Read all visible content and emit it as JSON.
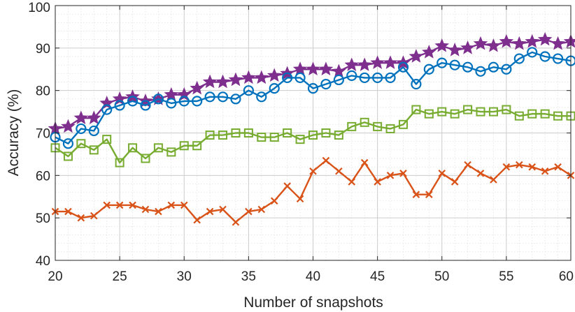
{
  "chart_data": {
    "type": "line",
    "title": "",
    "xlabel": "Number of snapshots",
    "ylabel": "Accuracy (%)",
    "xlim": [
      20,
      60
    ],
    "ylim": [
      40,
      100
    ],
    "xticks": [
      "20",
      "25",
      "30",
      "35",
      "40",
      "45",
      "50",
      "55",
      "60"
    ],
    "yticks": [
      "40",
      "50",
      "60",
      "70",
      "80",
      "90",
      "100"
    ],
    "grid": true,
    "minor_grid": true,
    "legend": "none",
    "x": [
      20,
      21,
      22,
      23,
      24,
      25,
      26,
      27,
      28,
      29,
      30,
      31,
      32,
      33,
      34,
      35,
      36,
      37,
      38,
      39,
      40,
      41,
      42,
      43,
      44,
      45,
      46,
      47,
      48,
      49,
      50,
      51,
      52,
      53,
      54,
      55,
      56,
      57,
      58,
      59,
      60
    ],
    "series": [
      {
        "marker": "star",
        "color": "#7E2F8E",
        "values": [
          71,
          71.5,
          73.5,
          73.5,
          77,
          78,
          78.5,
          77.5,
          78,
          79,
          79,
          80.5,
          82,
          82,
          82.5,
          83,
          83,
          83.5,
          84,
          85,
          85,
          85,
          84.5,
          86,
          86,
          86.5,
          86.5,
          86.5,
          88,
          89,
          90.5,
          89.5,
          90,
          91,
          90.5,
          91.5,
          91,
          91.5,
          92,
          91,
          91.5
        ]
      },
      {
        "marker": "circle",
        "color": "#0072BD",
        "values": [
          69,
          67.5,
          71,
          70.5,
          75.5,
          76.5,
          77.5,
          76.5,
          78,
          77,
          77.5,
          77.5,
          78.5,
          78.5,
          78,
          80,
          78.5,
          80.5,
          83,
          83,
          80.5,
          81.5,
          82.5,
          83.5,
          83,
          83,
          83,
          85.5,
          81.5,
          85,
          86.5,
          86,
          85.5,
          84.5,
          85.5,
          85,
          87.5,
          89,
          88,
          87.5,
          87
        ]
      },
      {
        "marker": "square",
        "color": "#77AC30",
        "values": [
          66.5,
          64.5,
          67.5,
          66,
          68.5,
          63,
          66.5,
          64,
          66.5,
          65.5,
          67,
          67,
          69.5,
          69.5,
          70,
          70,
          69,
          69,
          70,
          68.5,
          69.5,
          70,
          69.5,
          71.5,
          72.5,
          71.5,
          71,
          72,
          75.5,
          74.5,
          75,
          74.5,
          75.5,
          75,
          75,
          75.5,
          74,
          74.5,
          74.5,
          74,
          74
        ]
      },
      {
        "marker": "x",
        "color": "#D95319",
        "values": [
          51.5,
          51.5,
          50,
          50.5,
          53,
          53,
          53,
          52,
          51.5,
          53,
          53,
          49.5,
          51.5,
          52,
          49,
          51.5,
          52,
          54,
          57.5,
          54.5,
          61,
          63.5,
          61,
          58.5,
          63,
          58.5,
          60,
          60.5,
          55.5,
          55.5,
          60.5,
          58.5,
          62.5,
          60.5,
          59,
          62,
          62.5,
          62,
          61,
          62,
          60
        ]
      }
    ]
  }
}
